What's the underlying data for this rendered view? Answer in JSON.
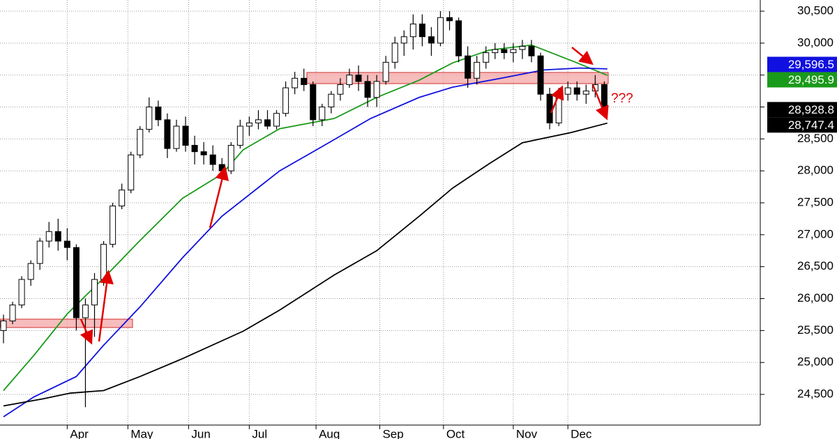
{
  "chart_data": {
    "type": "candlestick",
    "annotation": "???",
    "xlim": [
      -1.15,
      249.4
    ],
    "ylim": [
      24020,
      30675
    ],
    "xticks": [
      {
        "value": 21,
        "label": "Apr"
      },
      {
        "value": 41,
        "label": "May"
      },
      {
        "value": 61,
        "label": "Jun"
      },
      {
        "value": 81,
        "label": "Jul"
      },
      {
        "value": 103,
        "label": "Aug"
      },
      {
        "value": 124,
        "label": "Sep"
      },
      {
        "value": 145,
        "label": "Oct"
      },
      {
        "value": 168,
        "label": "Nov"
      },
      {
        "value": 186,
        "label": "Dec"
      }
    ],
    "yticks": [
      {
        "value": 24500,
        "label": "24,500"
      },
      {
        "value": 25000,
        "label": "25,000"
      },
      {
        "value": 25500,
        "label": "25,500"
      },
      {
        "value": 26000,
        "label": "26,000"
      },
      {
        "value": 26500,
        "label": "26,500"
      },
      {
        "value": 27000,
        "label": "27,000"
      },
      {
        "value": 27500,
        "label": "27,500"
      },
      {
        "value": 28000,
        "label": "28,000"
      },
      {
        "value": 28500,
        "label": "28,500"
      },
      {
        "value": 29000,
        "label": "29,000"
      },
      {
        "value": 29500,
        "label": "29,500"
      },
      {
        "value": 30000,
        "label": "30,000"
      },
      {
        "value": 30500,
        "label": "30,500"
      }
    ],
    "grid": true,
    "candles": {
      "color": "#000000",
      "tag": {
        "value": 28928.8,
        "label": "28,928.8"
      },
      "x": [
        0,
        3,
        6,
        9,
        12,
        15,
        18,
        21,
        24,
        27,
        30,
        33,
        36,
        39,
        42,
        45,
        48,
        51,
        54,
        57,
        60,
        63,
        66,
        69,
        72,
        75,
        78,
        81,
        84,
        87,
        90,
        93,
        96,
        99,
        102,
        105,
        108,
        111,
        114,
        117,
        120,
        123,
        126,
        129,
        132,
        135,
        138,
        141,
        144,
        147,
        150,
        153,
        156,
        159,
        162,
        165,
        168,
        171,
        174,
        177,
        180,
        183,
        186,
        189,
        192,
        195,
        198
      ],
      "ohlc": [
        [
          25500,
          25750,
          25300,
          25650
        ],
        [
          25650,
          25950,
          25600,
          25900
        ],
        [
          25900,
          26350,
          25850,
          26300
        ],
        [
          26300,
          26600,
          26200,
          26550
        ],
        [
          26550,
          26950,
          26450,
          26900
        ],
        [
          26900,
          27200,
          26800,
          27050
        ],
        [
          27050,
          27250,
          26750,
          26900
        ],
        [
          26900,
          27100,
          26600,
          26800
        ],
        [
          26800,
          26850,
          25500,
          25700
        ],
        [
          25700,
          26000,
          24300,
          25900
        ],
        [
          25900,
          26400,
          25400,
          26300
        ],
        [
          26300,
          26900,
          26200,
          26850
        ],
        [
          26850,
          27500,
          26800,
          27450
        ],
        [
          27450,
          27800,
          27400,
          27700
        ],
        [
          27700,
          28300,
          27650,
          28250
        ],
        [
          28250,
          28700,
          28200,
          28650
        ],
        [
          28650,
          29150,
          28600,
          29000
        ],
        [
          29000,
          29100,
          28700,
          28800
        ],
        [
          28800,
          28900,
          28200,
          28350
        ],
        [
          28350,
          28800,
          28300,
          28700
        ],
        [
          28700,
          28850,
          28300,
          28400
        ],
        [
          28400,
          28550,
          28100,
          28300
        ],
        [
          28300,
          28450,
          28100,
          28250
        ],
        [
          28250,
          28400,
          28000,
          28100
        ],
        [
          28100,
          28200,
          27900,
          28000
        ],
        [
          28000,
          28450,
          27950,
          28400
        ],
        [
          28400,
          28800,
          28350,
          28700
        ],
        [
          28700,
          28850,
          28550,
          28750
        ],
        [
          28750,
          28950,
          28650,
          28800
        ],
        [
          28800,
          28950,
          28650,
          28700
        ],
        [
          28700,
          28950,
          28650,
          28900
        ],
        [
          28900,
          29400,
          28850,
          29300
        ],
        [
          29300,
          29550,
          29200,
          29450
        ],
        [
          29450,
          29600,
          29250,
          29350
        ],
        [
          29350,
          29400,
          28700,
          28800
        ],
        [
          28800,
          29050,
          28700,
          29000
        ],
        [
          29000,
          29250,
          28900,
          29200
        ],
        [
          29200,
          29450,
          29100,
          29350
        ],
        [
          29350,
          29600,
          29300,
          29500
        ],
        [
          29500,
          29650,
          29250,
          29400
        ],
        [
          29400,
          29500,
          29000,
          29150
        ],
        [
          29150,
          29500,
          29000,
          29400
        ],
        [
          29400,
          29800,
          29350,
          29700
        ],
        [
          29700,
          30100,
          29600,
          30000
        ],
        [
          30000,
          30200,
          29800,
          30100
        ],
        [
          30100,
          30450,
          29900,
          30300
        ],
        [
          30300,
          30450,
          29950,
          30100
        ],
        [
          30100,
          30250,
          29800,
          30000
        ],
        [
          30000,
          30500,
          29950,
          30400
        ],
        [
          30400,
          30500,
          30200,
          30350
        ],
        [
          30350,
          30400,
          29700,
          29800
        ],
        [
          29800,
          29950,
          29300,
          29450
        ],
        [
          29450,
          29800,
          29350,
          29700
        ],
        [
          29700,
          29950,
          29600,
          29850
        ],
        [
          29850,
          30000,
          29750,
          29900
        ],
        [
          29900,
          30000,
          29750,
          29850
        ],
        [
          29850,
          30000,
          29700,
          29900
        ],
        [
          29900,
          30050,
          29750,
          29950
        ],
        [
          29950,
          30050,
          29700,
          29800
        ],
        [
          29800,
          29850,
          29100,
          29200
        ],
        [
          29200,
          29300,
          28650,
          28750
        ],
        [
          28750,
          29300,
          28700,
          29200
        ],
        [
          29200,
          29400,
          29100,
          29300
        ],
        [
          29300,
          29400,
          29100,
          29200
        ],
        [
          29200,
          29350,
          29050,
          29250
        ],
        [
          29250,
          29500,
          29150,
          29350
        ],
        [
          29350,
          29400,
          28850,
          28928.8
        ]
      ]
    },
    "series": [
      {
        "color": "#1a9a1a",
        "tag": {
          "value": 29495.9,
          "label": "29,495.9"
        },
        "x": [
          0,
          10,
          21,
          34,
          45,
          59,
          72,
          79,
          91,
          109,
          123,
          137,
          148,
          160,
          174,
          188,
          199
        ],
        "values": [
          24560,
          25110,
          25760,
          26370,
          26910,
          27570,
          27950,
          28330,
          28660,
          28820,
          29150,
          29420,
          29690,
          29890,
          29970,
          29710,
          29495.9
        ]
      },
      {
        "color": "#1010e0",
        "tag": {
          "value": 29596.5,
          "label": "29,596.5"
        },
        "x": [
          0,
          10,
          24,
          33,
          45,
          59,
          72,
          91,
          105,
          121,
          137,
          148,
          164,
          178,
          190,
          199
        ],
        "values": [
          24150,
          24460,
          24780,
          25270,
          25870,
          26640,
          27290,
          28000,
          28380,
          28820,
          29150,
          29310,
          29450,
          29580,
          29610,
          29596.5
        ]
      },
      {
        "color": "#000000",
        "tag": {
          "value": 28747.4,
          "label": "28,747.4"
        },
        "x": [
          0,
          13,
          22,
          33,
          45,
          59,
          79,
          91,
          109,
          123,
          137,
          148,
          160,
          171,
          187,
          199
        ],
        "values": [
          24320,
          24430,
          24520,
          24560,
          24780,
          25060,
          25490,
          25820,
          26370,
          26750,
          27290,
          27730,
          28110,
          28440,
          28600,
          28747.4
        ]
      }
    ]
  }
}
